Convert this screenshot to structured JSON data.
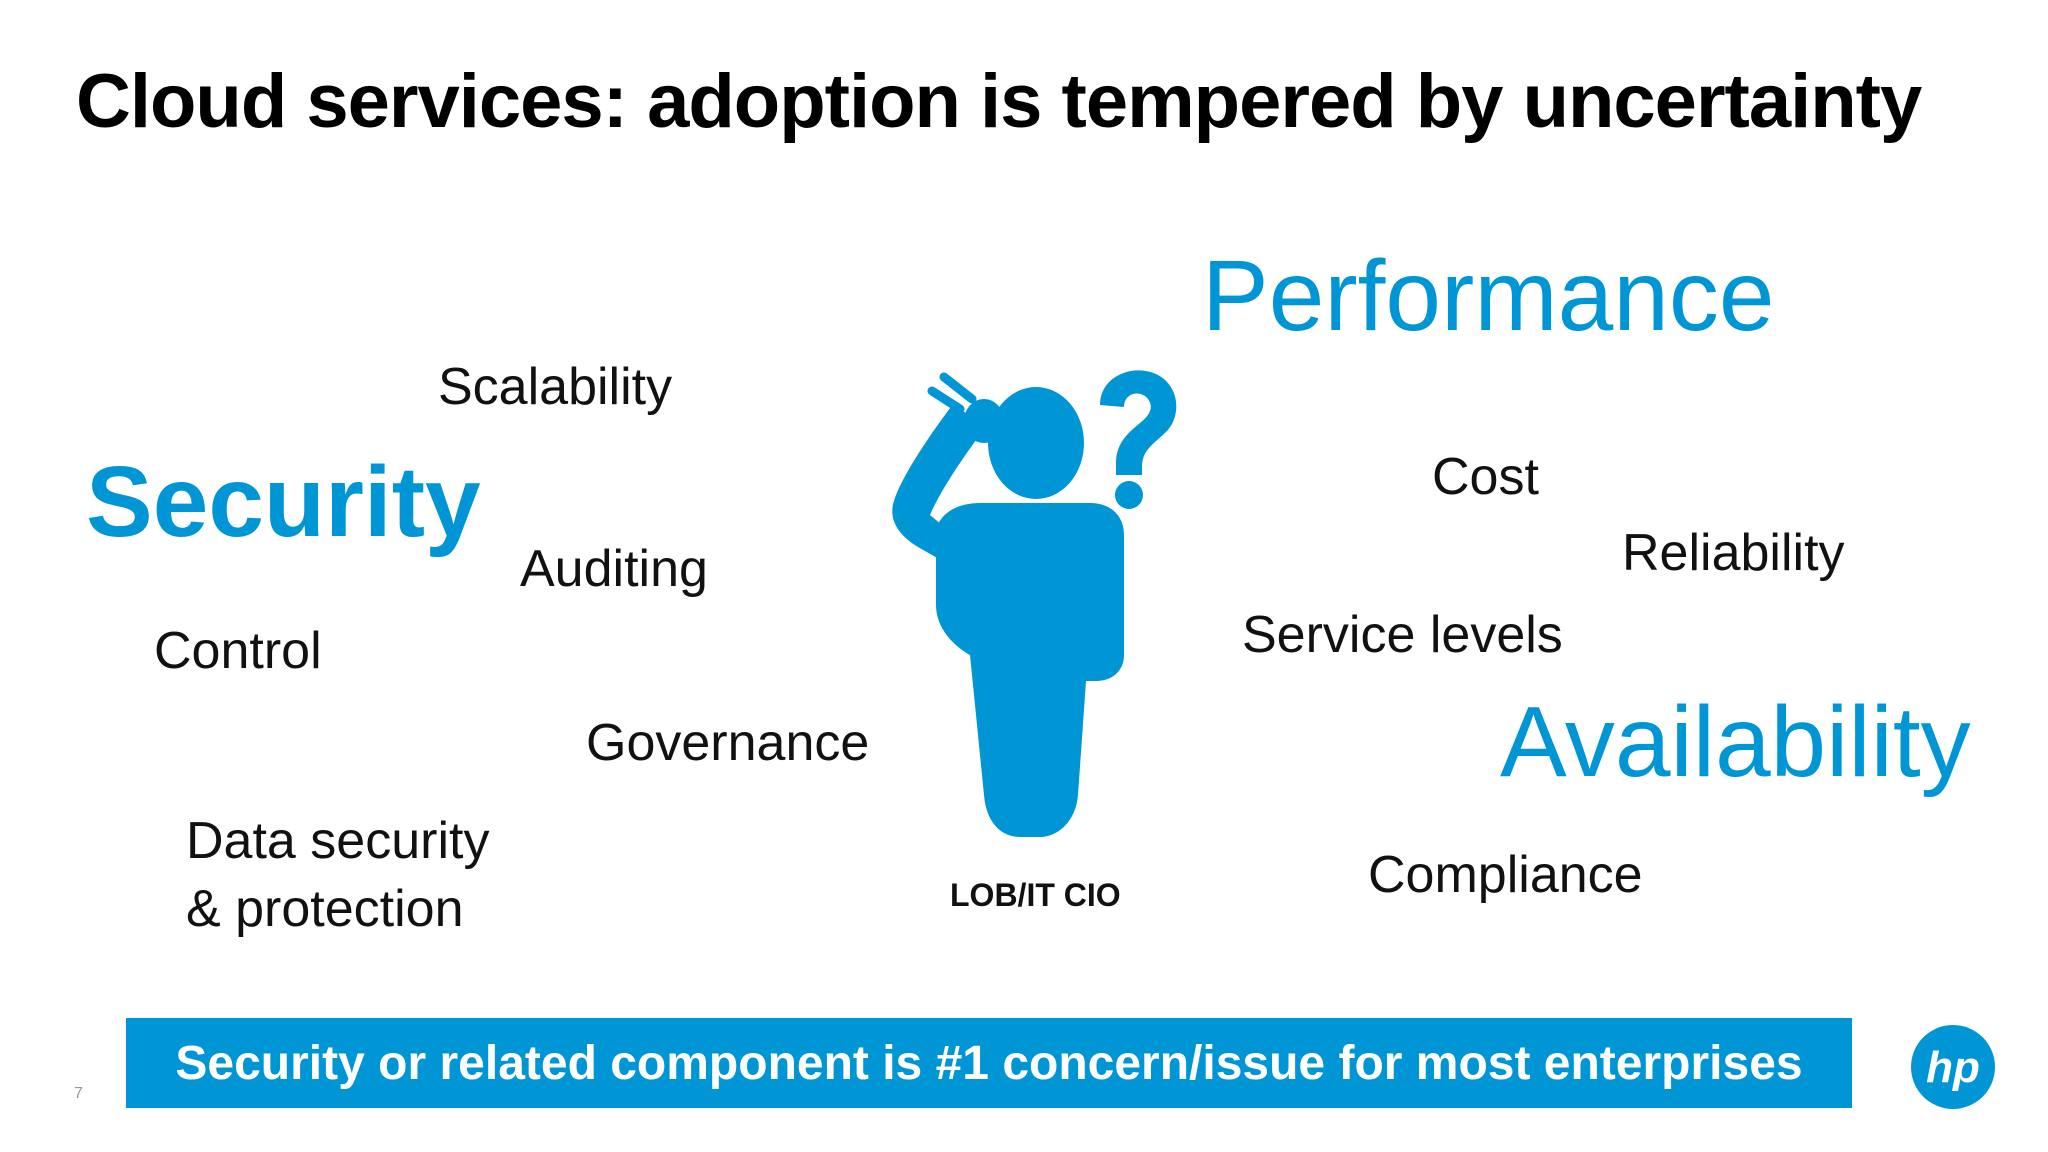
{
  "slide": {
    "title": "Cloud services: adoption is tempered by uncertainty",
    "words": {
      "scalability": "Scalability",
      "security": "Security",
      "auditing": "Auditing",
      "control": "Control",
      "governance": "Governance",
      "data_security_line1": "Data security",
      "data_security_line2": "& protection",
      "performance": "Performance",
      "cost": "Cost",
      "reliability": "Reliability",
      "service_levels": "Service levels",
      "availability": "Availability",
      "compliance": "Compliance"
    },
    "figure_label": "LOB/IT CIO",
    "banner_text": "Security or related component is #1 concern/issue for most enterprises",
    "page_number": "7",
    "logo_text": "hp",
    "colors": {
      "accent": "#0096d6",
      "text": "#111111",
      "banner_text": "#ffffff"
    },
    "icons": {
      "figure": "confused-person-icon",
      "logo": "hp-logo-icon"
    }
  }
}
